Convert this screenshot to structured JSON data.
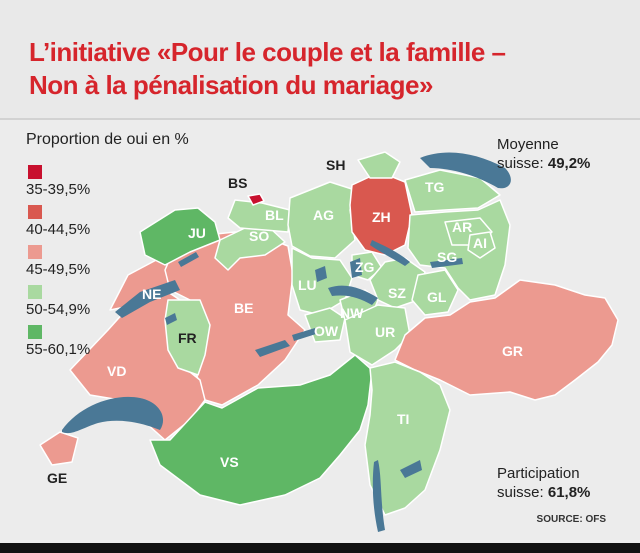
{
  "title": {
    "line1": "L’initiative «Pour le couple et la famille –",
    "line2": "Non à la pénalisation du mariage»"
  },
  "legend": {
    "title": "Proportion de oui en %",
    "items": [
      {
        "label": "35-39,5%",
        "color": "#c8102e"
      },
      {
        "label": "40-44,5%",
        "color": "#d9584f"
      },
      {
        "label": "45-49,5%",
        "color": "#ec9a90"
      },
      {
        "label": "50-54,9%",
        "color": "#a9d9a0"
      },
      {
        "label": "55-60,1%",
        "color": "#5fb765"
      }
    ]
  },
  "moyenne": {
    "label1": "Moyenne",
    "label2": "suisse:",
    "value": "49,2%"
  },
  "participation": {
    "label1": "Participation",
    "label2": "suisse:",
    "value": "61,8%"
  },
  "source": "SOURCE: OFS",
  "lakes_color": "#4a7896",
  "cantons": [
    {
      "code": "BS",
      "category": "35-39,5%"
    },
    {
      "code": "ZH",
      "category": "40-44,5%"
    },
    {
      "code": "GE",
      "category": "45-49,5%"
    },
    {
      "code": "VD",
      "category": "45-49,5%"
    },
    {
      "code": "NE",
      "category": "45-49,5%"
    },
    {
      "code": "BE",
      "category": "45-49,5%"
    },
    {
      "code": "GR",
      "category": "45-49,5%"
    },
    {
      "code": "JU",
      "category": "55-60,1%"
    },
    {
      "code": "VS",
      "category": "55-60,1%"
    },
    {
      "code": "FR",
      "category": "50-54,9%"
    },
    {
      "code": "SO",
      "category": "50-54,9%"
    },
    {
      "code": "BL",
      "category": "50-54,9%"
    },
    {
      "code": "AG",
      "category": "50-54,9%"
    },
    {
      "code": "LU",
      "category": "50-54,9%"
    },
    {
      "code": "ZG",
      "category": "50-54,9%"
    },
    {
      "code": "SZ",
      "category": "50-54,9%"
    },
    {
      "code": "NW",
      "category": "50-54,9%"
    },
    {
      "code": "OW",
      "category": "50-54,9%"
    },
    {
      "code": "UR",
      "category": "50-54,9%"
    },
    {
      "code": "TI",
      "category": "50-54,9%"
    },
    {
      "code": "GL",
      "category": "50-54,9%"
    },
    {
      "code": "SG",
      "category": "50-54,9%"
    },
    {
      "code": "AR",
      "category": "50-54,9%"
    },
    {
      "code": "AI",
      "category": "50-54,9%"
    },
    {
      "code": "TG",
      "category": "50-54,9%"
    },
    {
      "code": "SH",
      "category": "50-54,9%"
    }
  ]
}
